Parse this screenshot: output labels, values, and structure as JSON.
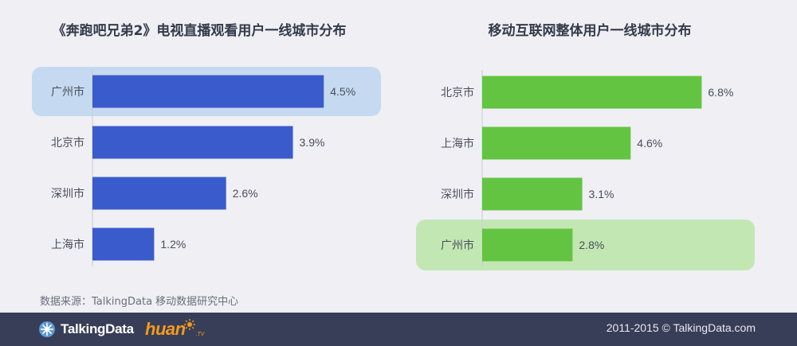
{
  "chart_data": [
    {
      "type": "bar",
      "orientation": "horizontal",
      "title": "《奔跑吧兄弟2》电视直播观看用户一线城市分布",
      "categories": [
        "广州市",
        "北京市",
        "深圳市",
        "上海市"
      ],
      "values": [
        4.5,
        3.9,
        2.6,
        1.2
      ],
      "value_labels": [
        "4.5%",
        "3.9%",
        "2.6%",
        "1.2%"
      ],
      "highlighted_category": "广州市",
      "colors": {
        "bar": "#3a5bcc",
        "highlight": "#c5d9f0"
      },
      "xlim": [
        0,
        7
      ],
      "grid": false
    },
    {
      "type": "bar",
      "orientation": "horizontal",
      "title": "移动互联网整体用户一线城市分布",
      "categories": [
        "北京市",
        "上海市",
        "深圳市",
        "广州市"
      ],
      "values": [
        6.8,
        4.6,
        3.1,
        2.8
      ],
      "value_labels": [
        "6.8%",
        "4.6%",
        "3.1%",
        "2.8%"
      ],
      "highlighted_category": "广州市",
      "colors": {
        "bar": "#63c442",
        "highlight": "#c3e7b3"
      },
      "xlim": [
        0,
        7
      ],
      "grid": false
    }
  ],
  "source": "数据来源：TalkingData 移动数据研究中心",
  "footer": {
    "talkingdata_logo": "TalkingData",
    "talkingdata_icon": "talkingdata-logo-icon",
    "huan_logo": "huan",
    "huan_sub": ".TV",
    "copyright": "2011-2015 © TalkingData.com"
  },
  "colors": {
    "background": "#efeff4",
    "footer": "#383e57",
    "huan": "#f39a1e"
  }
}
